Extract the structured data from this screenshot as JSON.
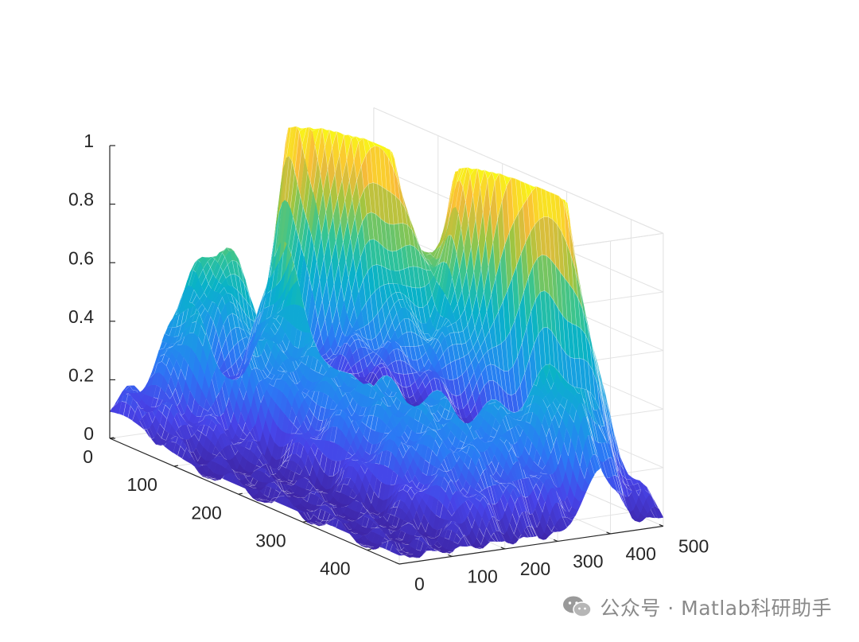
{
  "chart_data": {
    "type": "surface",
    "colormap": "parula",
    "grid": true,
    "view": "3d",
    "xlim": [
      0,
      500
    ],
    "ylim": [
      0,
      450
    ],
    "zlim": [
      0,
      1
    ],
    "xticks": [
      "0",
      "100",
      "200",
      "300",
      "400",
      "500"
    ],
    "yticks": [
      "0",
      "100",
      "200",
      "300",
      "400"
    ],
    "zticks": [
      "0",
      "0.2",
      "0.4",
      "0.6",
      "0.8",
      "1"
    ],
    "z_max": 1,
    "peaks": [
      {
        "x": 330,
        "y": 60,
        "z": 0.97
      },
      {
        "x": 290,
        "y": 90,
        "z": 0.78
      },
      {
        "x": 370,
        "y": 100,
        "z": 0.8
      },
      {
        "x": 440,
        "y": 240,
        "z": 0.86
      },
      {
        "x": 400,
        "y": 260,
        "z": 0.77
      },
      {
        "x": 460,
        "y": 310,
        "z": 0.74
      },
      {
        "x": 400,
        "y": 340,
        "z": 0.48
      },
      {
        "x": 160,
        "y": 40,
        "z": 0.42
      },
      {
        "x": 110,
        "y": 30,
        "z": 0.33
      },
      {
        "x": 380,
        "y": 430,
        "z": 0.2
      },
      {
        "x": 30,
        "y": 20,
        "z": 0.12
      }
    ]
  },
  "watermark": {
    "text": "公众号 · Matlab科研助手",
    "icon": "wechat-icon"
  }
}
